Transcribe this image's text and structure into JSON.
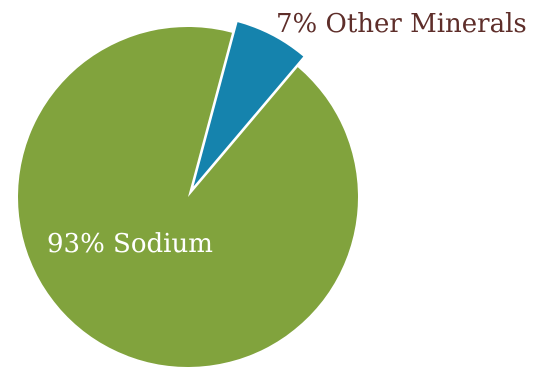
{
  "chart_data": {
    "type": "pie",
    "title": "",
    "start_angle_deg": 15,
    "direction": "clockwise",
    "slices": [
      {
        "label": "7% Other Minerals",
        "value": 7,
        "color": "#1583ad",
        "label_color": "#5e2e2a",
        "exploded": true
      },
      {
        "label": "93% Sodium",
        "value": 93,
        "color": "#81a33d",
        "label_color": "#ffffff",
        "exploded": false
      }
    ]
  }
}
